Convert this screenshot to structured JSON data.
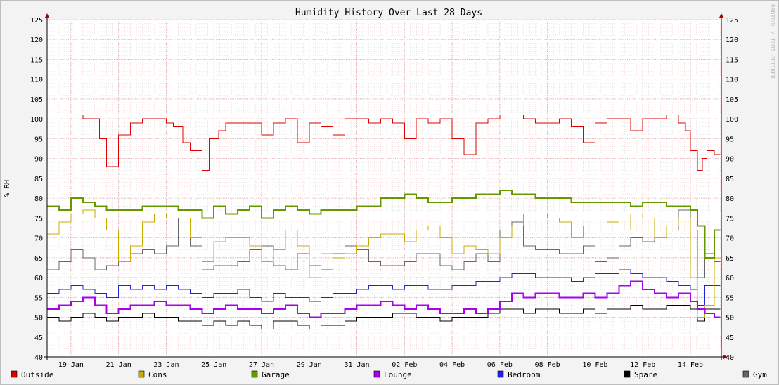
{
  "chart_data": {
    "type": "line",
    "title": "Humidity History Over Last 28 Days",
    "ylabel": "% RH",
    "xlabel": "",
    "ylim": [
      40,
      125
    ],
    "yticks": [
      40,
      45,
      50,
      55,
      60,
      65,
      70,
      75,
      80,
      85,
      90,
      95,
      100,
      105,
      110,
      115,
      120,
      125
    ],
    "xlim": [
      0,
      28.3
    ],
    "xticks": [
      {
        "label": "19 Jan",
        "x": 1
      },
      {
        "label": "21 Jan",
        "x": 3
      },
      {
        "label": "23 Jan",
        "x": 5
      },
      {
        "label": "25 Jan",
        "x": 7
      },
      {
        "label": "27 Jan",
        "x": 9
      },
      {
        "label": "29 Jan",
        "x": 11
      },
      {
        "label": "31 Jan",
        "x": 13
      },
      {
        "label": "02 Feb",
        "x": 15
      },
      {
        "label": "04 Feb",
        "x": 17
      },
      {
        "label": "06 Feb",
        "x": 19
      },
      {
        "label": "08 Feb",
        "x": 21
      },
      {
        "label": "10 Feb",
        "x": 23
      },
      {
        "label": "12 Feb",
        "x": 25
      },
      {
        "label": "14 Feb",
        "x": 27
      }
    ],
    "grid": true,
    "legend_position": "bottom",
    "watermark": "RRDTOOL / TOBI OETIKER",
    "series": [
      {
        "name": "Outside",
        "color": "#dd0000",
        "width": 1,
        "x": [
          0,
          0.5,
          1,
          1.5,
          2,
          2.2,
          2.5,
          3,
          3.5,
          4,
          4.5,
          5,
          5.3,
          5.7,
          6,
          6.5,
          6.8,
          7.2,
          7.5,
          8,
          8.5,
          9,
          9.5,
          10,
          10.5,
          11,
          11.5,
          12,
          12.5,
          13,
          13.5,
          14,
          14.5,
          15,
          15.5,
          16,
          16.5,
          17,
          17.5,
          18,
          18.5,
          19,
          19.5,
          20,
          20.5,
          21,
          21.5,
          22,
          22.5,
          23,
          23.5,
          24,
          24.5,
          25,
          25.5,
          26,
          26.5,
          26.8,
          27,
          27.3,
          27.5,
          27.7,
          28
        ],
        "y": [
          101,
          101,
          101,
          100,
          100,
          95,
          88,
          96,
          99,
          100,
          100,
          99,
          98,
          94,
          92,
          87,
          95,
          97,
          99,
          99,
          99,
          96,
          99,
          100,
          94,
          99,
          98,
          96,
          100,
          100,
          99,
          100,
          99,
          95,
          100,
          99,
          100,
          95,
          91,
          99,
          100,
          101,
          101,
          100,
          99,
          99,
          100,
          98,
          94,
          99,
          100,
          100,
          97,
          100,
          100,
          101,
          99,
          97,
          92,
          87,
          90,
          92,
          91
        ]
      },
      {
        "name": "Cons",
        "color": "#ccaa00",
        "width": 1,
        "x": [
          0,
          0.5,
          1,
          1.5,
          2,
          2.5,
          3,
          3.5,
          4,
          4.5,
          5,
          5.5,
          6,
          6.5,
          7,
          7.5,
          8,
          8.5,
          9,
          9.5,
          10,
          10.5,
          11,
          11.5,
          12,
          12.5,
          13,
          13.5,
          14,
          14.5,
          15,
          15.5,
          16,
          16.5,
          17,
          17.5,
          18,
          18.5,
          19,
          19.5,
          20,
          20.5,
          21,
          21.5,
          22,
          22.5,
          23,
          23.5,
          24,
          24.5,
          25,
          25.5,
          26,
          26.5,
          27,
          27.3,
          27.6,
          28
        ],
        "y": [
          71,
          74,
          76,
          77,
          75,
          72,
          64,
          68,
          74,
          76,
          75,
          75,
          70,
          64,
          69,
          70,
          70,
          68,
          64,
          67,
          72,
          68,
          60,
          66,
          65,
          66,
          68,
          70,
          71,
          71,
          69,
          72,
          73,
          70,
          66,
          68,
          67,
          66,
          70,
          73,
          76,
          76,
          75,
          74,
          70,
          73,
          76,
          74,
          72,
          76,
          75,
          70,
          73,
          75,
          60,
          50,
          53,
          65
        ]
      },
      {
        "name": "Garage",
        "color": "#669900",
        "width": 2,
        "x": [
          0,
          0.5,
          1,
          1.5,
          2,
          2.5,
          3,
          3.5,
          4,
          4.5,
          5,
          5.5,
          6,
          6.5,
          7,
          7.5,
          8,
          8.5,
          9,
          9.5,
          10,
          10.5,
          11,
          11.5,
          12,
          12.5,
          13,
          13.5,
          14,
          14.5,
          15,
          15.5,
          16,
          16.5,
          17,
          17.5,
          18,
          18.5,
          19,
          19.5,
          20,
          20.5,
          21,
          21.5,
          22,
          22.5,
          23,
          23.5,
          24,
          24.5,
          25,
          25.5,
          26,
          26.5,
          27,
          27.3,
          27.6,
          28
        ],
        "y": [
          78,
          77,
          80,
          79,
          78,
          77,
          77,
          77,
          78,
          78,
          78,
          77,
          77,
          75,
          78,
          76,
          77,
          78,
          75,
          77,
          78,
          77,
          76,
          77,
          77,
          77,
          78,
          78,
          80,
          80,
          81,
          80,
          79,
          79,
          80,
          80,
          81,
          81,
          82,
          81,
          81,
          80,
          80,
          80,
          79,
          79,
          79,
          79,
          79,
          78,
          79,
          79,
          78,
          78,
          77,
          73,
          65,
          72
        ]
      },
      {
        "name": "Lounge",
        "color": "#aa00ee",
        "width": 2,
        "x": [
          0,
          0.5,
          1,
          1.5,
          2,
          2.5,
          3,
          3.5,
          4,
          4.5,
          5,
          5.5,
          6,
          6.5,
          7,
          7.5,
          8,
          8.5,
          9,
          9.5,
          10,
          10.5,
          11,
          11.5,
          12,
          12.5,
          13,
          13.5,
          14,
          14.5,
          15,
          15.5,
          16,
          16.5,
          17,
          17.5,
          18,
          18.5,
          19,
          19.5,
          20,
          20.5,
          21,
          21.5,
          22,
          22.5,
          23,
          23.5,
          24,
          24.5,
          25,
          25.5,
          26,
          26.5,
          27,
          27.3,
          27.6,
          28
        ],
        "y": [
          52,
          53,
          54,
          55,
          53,
          51,
          52,
          53,
          53,
          54,
          53,
          53,
          52,
          51,
          52,
          53,
          52,
          52,
          51,
          52,
          53,
          51,
          50,
          51,
          51,
          52,
          53,
          53,
          54,
          53,
          52,
          53,
          52,
          51,
          51,
          52,
          51,
          52,
          54,
          56,
          55,
          56,
          56,
          55,
          55,
          56,
          55,
          56,
          58,
          59,
          57,
          56,
          55,
          56,
          54,
          52,
          51,
          50
        ]
      },
      {
        "name": "Bedroom",
        "color": "#2222dd",
        "width": 1,
        "x": [
          0,
          0.5,
          1,
          1.5,
          2,
          2.5,
          3,
          3.5,
          4,
          4.5,
          5,
          5.5,
          6,
          6.5,
          7,
          7.5,
          8,
          8.5,
          9,
          9.5,
          10,
          10.5,
          11,
          11.5,
          12,
          12.5,
          13,
          13.5,
          14,
          14.5,
          15,
          15.5,
          16,
          16.5,
          17,
          17.5,
          18,
          18.5,
          19,
          19.5,
          20,
          20.5,
          21,
          21.5,
          22,
          22.5,
          23,
          23.5,
          24,
          24.5,
          25,
          25.5,
          26,
          26.5,
          27,
          27.3,
          27.6,
          28
        ],
        "y": [
          56,
          57,
          58,
          57,
          56,
          55,
          58,
          57,
          58,
          57,
          58,
          57,
          56,
          55,
          56,
          56,
          57,
          55,
          54,
          56,
          55,
          55,
          54,
          55,
          56,
          56,
          57,
          58,
          58,
          57,
          58,
          58,
          57,
          57,
          58,
          58,
          59,
          59,
          60,
          61,
          61,
          60,
          60,
          60,
          59,
          60,
          61,
          61,
          62,
          61,
          60,
          60,
          59,
          58,
          57,
          53,
          58,
          58
        ]
      },
      {
        "name": "Spare",
        "color": "#000000",
        "width": 1,
        "x": [
          0,
          0.5,
          1,
          1.5,
          2,
          2.5,
          3,
          3.5,
          4,
          4.5,
          5,
          5.5,
          6,
          6.5,
          7,
          7.5,
          8,
          8.5,
          9,
          9.5,
          10,
          10.5,
          11,
          11.5,
          12,
          12.5,
          13,
          13.5,
          14,
          14.5,
          15,
          15.5,
          16,
          16.5,
          17,
          17.5,
          18,
          18.5,
          19,
          19.5,
          20,
          20.5,
          21,
          21.5,
          22,
          22.5,
          23,
          23.5,
          24,
          24.5,
          25,
          25.5,
          26,
          26.5,
          27,
          27.3,
          27.6,
          28
        ],
        "y": [
          50,
          49,
          50,
          51,
          50,
          49,
          50,
          50,
          51,
          50,
          50,
          49,
          49,
          48,
          49,
          48,
          49,
          48,
          47,
          49,
          49,
          48,
          47,
          48,
          48,
          49,
          50,
          50,
          50,
          51,
          51,
          50,
          50,
          49,
          50,
          50,
          50,
          51,
          52,
          52,
          51,
          52,
          52,
          51,
          51,
          52,
          51,
          52,
          52,
          53,
          52,
          52,
          53,
          53,
          52,
          49,
          52,
          52
        ]
      },
      {
        "name": "Gym",
        "color": "#666666",
        "width": 1,
        "x": [
          0,
          0.5,
          1,
          1.5,
          2,
          2.5,
          3,
          3.5,
          4,
          4.5,
          5,
          5.5,
          6,
          6.5,
          7,
          7.5,
          8,
          8.5,
          9,
          9.5,
          10,
          10.5,
          11,
          11.5,
          12,
          12.5,
          13,
          13.5,
          14,
          14.5,
          15,
          15.5,
          16,
          16.5,
          17,
          17.5,
          18,
          18.5,
          19,
          19.5,
          20,
          20.5,
          21,
          21.5,
          22,
          22.5,
          23,
          23.5,
          24,
          24.5,
          25,
          25.5,
          26,
          26.5,
          27,
          27.3,
          27.6,
          28
        ],
        "y": [
          62,
          64,
          67,
          65,
          62,
          63,
          64,
          66,
          67,
          66,
          68,
          75,
          68,
          62,
          63,
          63,
          64,
          67,
          68,
          63,
          62,
          66,
          63,
          62,
          66,
          68,
          67,
          64,
          63,
          63,
          64,
          66,
          66,
          63,
          62,
          64,
          66,
          64,
          72,
          74,
          68,
          67,
          67,
          66,
          66,
          68,
          64,
          65,
          68,
          70,
          69,
          70,
          72,
          77,
          72,
          60,
          66,
          64
        ]
      }
    ]
  }
}
